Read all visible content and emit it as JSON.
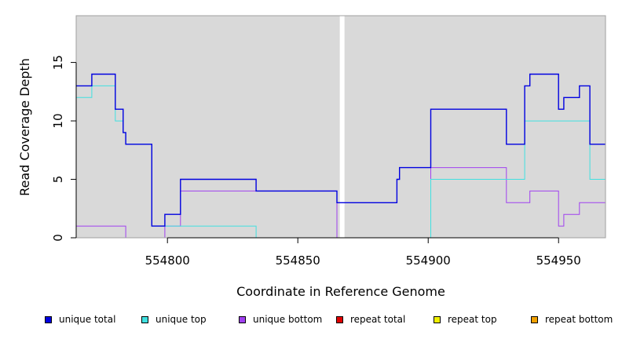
{
  "chart_data": {
    "type": "line",
    "xlabel": "Coordinate in Reference Genome",
    "ylabel": "Read Coverage Depth",
    "xlim": [
      554765,
      554968
    ],
    "ylim": [
      0,
      19
    ],
    "x_ticks": [
      554800,
      554850,
      554900,
      554950
    ],
    "x_tick_labels": [
      "554800",
      "554850",
      "554900",
      "554950"
    ],
    "y_ticks": [
      0,
      5,
      10,
      15
    ],
    "y_tick_labels": [
      "0",
      "5",
      "10",
      "15"
    ],
    "background": "#d9d9d9",
    "gap_x": 554867,
    "legend_position": "bottom",
    "series": [
      {
        "name": "unique total",
        "color": "#0000e0",
        "points": [
          [
            554765,
            13
          ],
          [
            554771,
            14
          ],
          [
            554780,
            11
          ],
          [
            554783,
            9
          ],
          [
            554784,
            8
          ],
          [
            554794,
            1
          ],
          [
            554799,
            2
          ],
          [
            554805,
            5
          ],
          [
            554834,
            4
          ],
          [
            554865,
            3
          ],
          [
            554869,
            3
          ],
          [
            554888,
            5
          ],
          [
            554889,
            6
          ],
          [
            554901,
            11
          ],
          [
            554930,
            8
          ],
          [
            554937,
            13
          ],
          [
            554939,
            14
          ],
          [
            554950,
            11
          ],
          [
            554952,
            12
          ],
          [
            554958,
            13
          ],
          [
            554962,
            8
          ],
          [
            554968,
            8
          ]
        ]
      },
      {
        "name": "unique top",
        "color": "#40e0e0",
        "points": [
          [
            554765,
            12
          ],
          [
            554771,
            13
          ],
          [
            554780,
            10
          ],
          [
            554783,
            9
          ],
          [
            554784,
            8
          ],
          [
            554794,
            1
          ],
          [
            554799,
            1
          ],
          [
            554834,
            0
          ],
          [
            554901,
            5
          ],
          [
            554937,
            10
          ],
          [
            554962,
            5
          ],
          [
            554968,
            5
          ]
        ]
      },
      {
        "name": "unique bottom",
        "color": "#a040f0",
        "points": [
          [
            554765,
            1
          ],
          [
            554784,
            0
          ],
          [
            554799,
            1
          ],
          [
            554805,
            4
          ],
          [
            554834,
            4
          ],
          [
            554865,
            0
          ],
          [
            554869,
            0
          ],
          [
            554901,
            6
          ],
          [
            554930,
            3
          ],
          [
            554939,
            4
          ],
          [
            554950,
            1
          ],
          [
            554952,
            2
          ],
          [
            554958,
            3
          ],
          [
            554968,
            3
          ]
        ]
      },
      {
        "name": "repeat total",
        "color": "#e00000",
        "points": [
          [
            554765,
            0
          ],
          [
            554968,
            0
          ]
        ]
      },
      {
        "name": "repeat top",
        "color": "#f0f000",
        "points": [
          [
            554765,
            0
          ],
          [
            554968,
            0
          ]
        ]
      },
      {
        "name": "repeat bottom",
        "color": "#f0a000",
        "points": [
          [
            554765,
            0
          ],
          [
            554968,
            0
          ]
        ]
      }
    ]
  }
}
